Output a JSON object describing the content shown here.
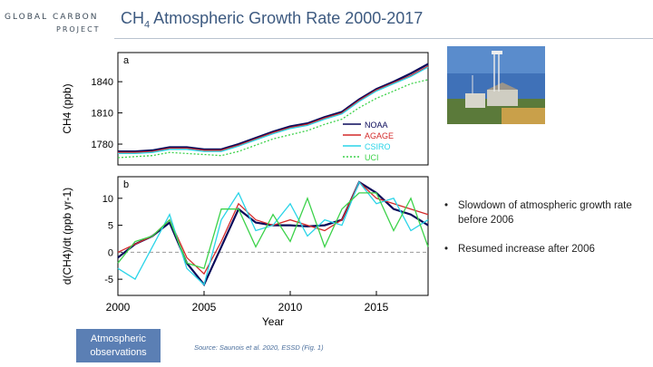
{
  "header": {
    "logo_top": "GLOBAL CARBON",
    "logo_bottom": "PROJECT",
    "title_prefix": "CH",
    "title_sub": "4",
    "title_rest": " Atmospheric Growth Rate 2000-2017"
  },
  "bullets": [
    {
      "text": "Slowdown of atmospheric growth rate before 2006"
    },
    {
      "text": "Resumed increase after 2006"
    }
  ],
  "obs_button": {
    "label": "Atmospheric observations"
  },
  "source": {
    "text": "Source: Saunois et al. 2020, ESSD (Fig. 1)"
  },
  "chart_data": [
    {
      "panel_label": "a",
      "type": "line",
      "ylabel": "CH4 (ppb)",
      "ylim": [
        1760,
        1868
      ],
      "yticks": [
        1780,
        1810,
        1840
      ],
      "xlim": [
        2000,
        2018
      ],
      "legend": [
        "NOAA",
        "AGAGE",
        "CSIRO",
        "UCI"
      ],
      "legend_position": "bottom-right",
      "colors": {
        "NOAA": "#0a0a5a",
        "AGAGE": "#d42a2a",
        "CSIRO": "#2ad4e8",
        "UCI": "#3cd24a"
      },
      "series": [
        {
          "name": "NOAA",
          "x": [
            2000,
            2001,
            2002,
            2003,
            2004,
            2005,
            2006,
            2007,
            2008,
            2009,
            2010,
            2011,
            2012,
            2013,
            2014,
            2015,
            2016,
            2017,
            2018
          ],
          "values": [
            1773,
            1773,
            1774,
            1777,
            1777,
            1775,
            1775,
            1780,
            1786,
            1792,
            1797,
            1800,
            1806,
            1811,
            1823,
            1833,
            1840,
            1848,
            1857
          ]
        },
        {
          "name": "AGAGE",
          "x": [
            2000,
            2001,
            2002,
            2003,
            2004,
            2005,
            2006,
            2007,
            2008,
            2009,
            2010,
            2011,
            2012,
            2013,
            2014,
            2015,
            2016,
            2017,
            2018
          ],
          "values": [
            1772,
            1772,
            1773,
            1776,
            1776,
            1774,
            1774,
            1779,
            1785,
            1791,
            1796,
            1799,
            1805,
            1810,
            1822,
            1832,
            1839,
            1846,
            1855
          ]
        },
        {
          "name": "CSIRO",
          "x": [
            2000,
            2001,
            2002,
            2003,
            2004,
            2005,
            2006,
            2007,
            2008,
            2009,
            2010,
            2011,
            2012,
            2013,
            2014,
            2015,
            2016,
            2017,
            2018
          ],
          "values": [
            1771,
            1771,
            1772,
            1775,
            1775,
            1773,
            1773,
            1778,
            1784,
            1790,
            1795,
            1798,
            1804,
            1809,
            1821,
            1831,
            1838,
            1845,
            1854
          ]
        },
        {
          "name": "UCI",
          "x": [
            2000,
            2001,
            2002,
            2003,
            2004,
            2005,
            2006,
            2007,
            2008,
            2009,
            2010,
            2011,
            2012,
            2013,
            2014,
            2015,
            2016,
            2017,
            2018
          ],
          "values": [
            1767,
            1768,
            1769,
            1772,
            1771,
            1770,
            1769,
            1773,
            1779,
            1785,
            1789,
            1793,
            1799,
            1804,
            1815,
            1824,
            1831,
            1838,
            1842
          ]
        }
      ]
    },
    {
      "panel_label": "b",
      "type": "line",
      "ylabel": "d(CH4)/dt (ppb yr-1)",
      "xlabel": "Year",
      "ylim": [
        -8,
        14
      ],
      "yticks": [
        -5,
        0,
        5,
        10
      ],
      "xlim": [
        2000,
        2018
      ],
      "xticks": [
        2000,
        2005,
        2010,
        2015
      ],
      "zero_line": "dashed",
      "series": [
        {
          "name": "NOAA",
          "x": [
            2000,
            2001,
            2002,
            2003,
            2004,
            2005,
            2006,
            2007,
            2008,
            2009,
            2010,
            2011,
            2012,
            2013,
            2014,
            2015,
            2016,
            2017,
            2018
          ],
          "values": [
            -1,
            1.5,
            3,
            5.5,
            -2,
            -6,
            1,
            8,
            5.5,
            5,
            5,
            4.8,
            5,
            6,
            13,
            11,
            8,
            7,
            5
          ]
        },
        {
          "name": "AGAGE",
          "x": [
            2000,
            2001,
            2002,
            2003,
            2004,
            2005,
            2006,
            2007,
            2008,
            2009,
            2010,
            2011,
            2012,
            2013,
            2014,
            2015,
            2016,
            2017,
            2018
          ],
          "values": [
            0,
            1.5,
            3,
            6,
            -1,
            -4,
            2,
            9,
            6,
            5,
            6,
            5,
            4,
            6,
            13,
            10,
            9,
            8,
            7
          ]
        },
        {
          "name": "CSIRO",
          "x": [
            2000,
            2001,
            2002,
            2003,
            2004,
            2005,
            2006,
            2007,
            2008,
            2009,
            2010,
            2011,
            2012,
            2013,
            2014,
            2015,
            2016,
            2017,
            2018
          ],
          "values": [
            -3,
            -5,
            1,
            7,
            -3,
            -6,
            6,
            11,
            4,
            5,
            9,
            3,
            6,
            5,
            13,
            9,
            10,
            4,
            6
          ]
        },
        {
          "name": "UCI",
          "x": [
            2000,
            2001,
            2002,
            2003,
            2004,
            2005,
            2006,
            2007,
            2008,
            2009,
            2010,
            2011,
            2012,
            2013,
            2014,
            2015,
            2016,
            2017,
            2018
          ],
          "values": [
            -2,
            2,
            3,
            6,
            -2,
            -3,
            8,
            8,
            1,
            7,
            2,
            10,
            1,
            8,
            11,
            11,
            4,
            10,
            1
          ]
        }
      ]
    }
  ]
}
